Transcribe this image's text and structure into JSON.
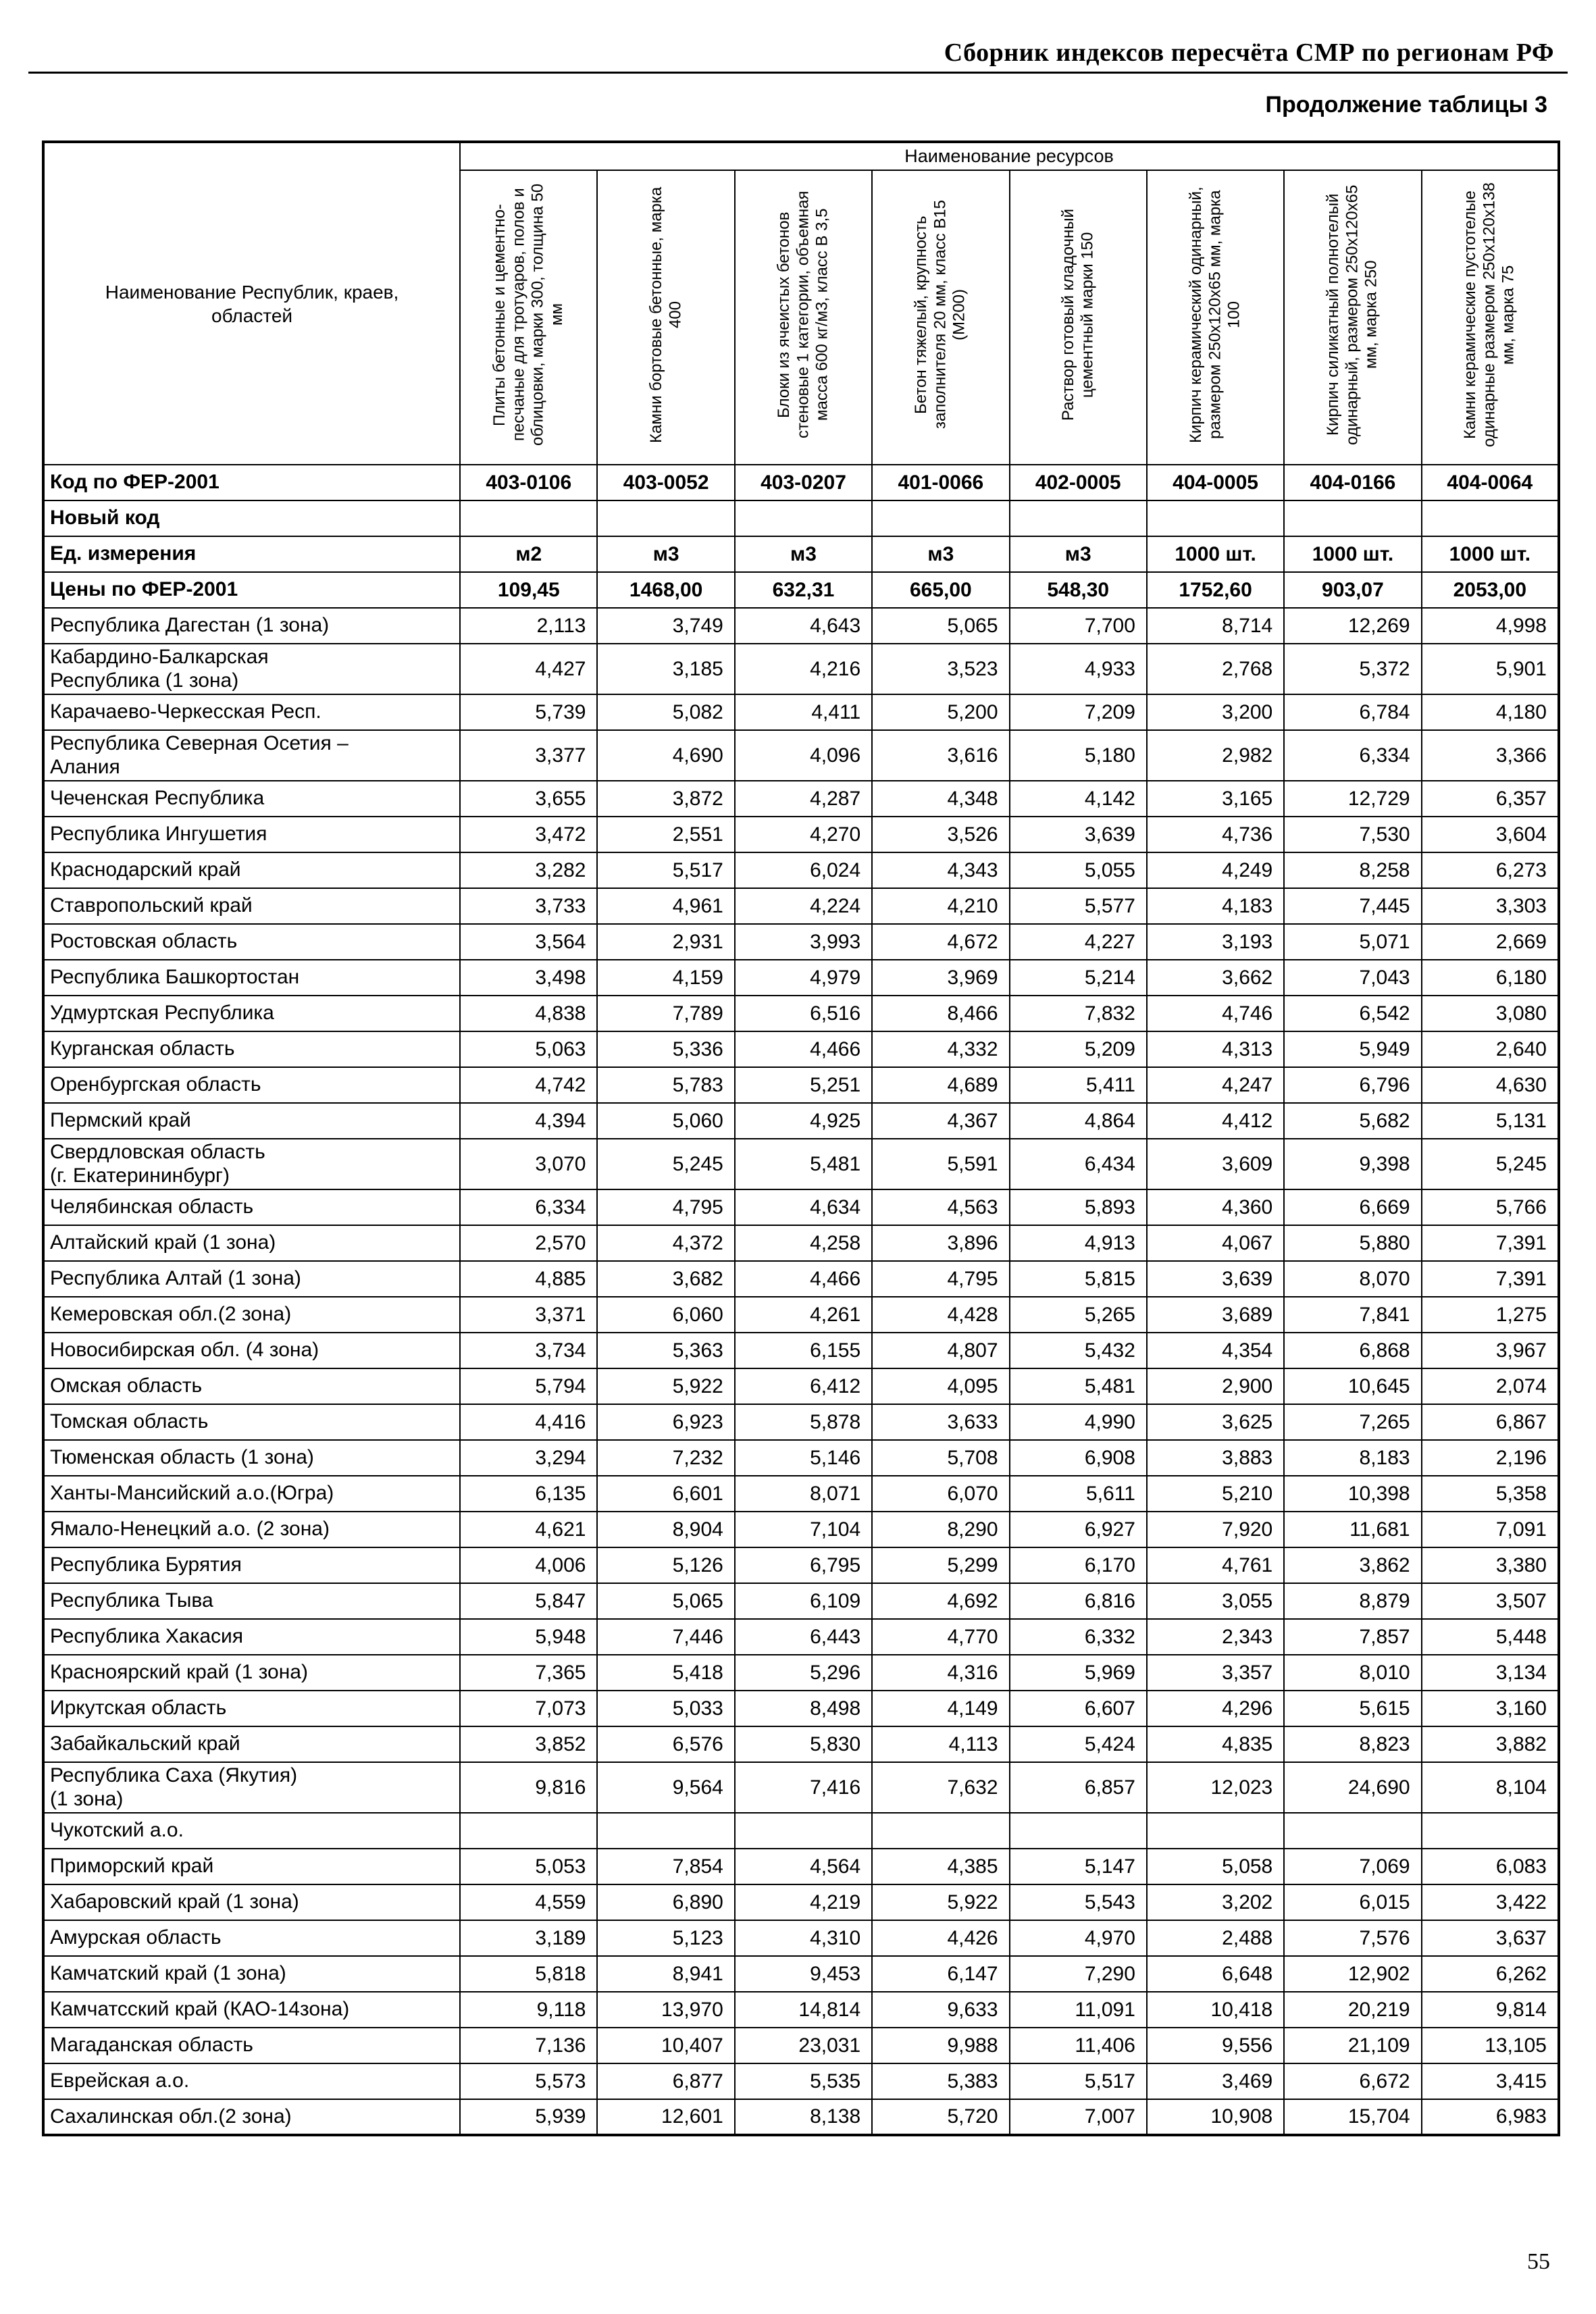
{
  "page": {
    "header": "Сборник индексов пересчёта СМР  по регионам РФ",
    "subtitle": "Продолжение таблицы 3",
    "page_number": "55"
  },
  "table": {
    "resources_header": "Наименование ресурсов",
    "first_col_header": "Наименование Республик, краев,\nобластей",
    "col_headers": [
      "Плиты  бетонные и цементно-песчаные  для тротуаров, полов и облицовки, марки 300, толщина 50 мм",
      "Камни бортовые бетонные, марка 400",
      "Блоки из ячеистых бетонов стеновые 1 категории, объемная масса 600 кг/м3, класс В 3,5",
      "Бетон тяжелый, крупность заполнителя 20 мм, класс В15 (М200)",
      "Раствор готовый кладочный цементный марки 150",
      "Кирпич керамический одинарный, размером 250х120х65 мм, марка 100",
      "Кирпич силикатный полнотелый одинарный, размером 250х120х65 мм, марка 250",
      "Камни керамические пустотелые одинарные размером 250х120х138 мм, марка 75"
    ],
    "meta_rows": [
      {
        "label": "Код по ФЕР-2001",
        "values": [
          "403-0106",
          "403-0052",
          "403-0207",
          "401-0066",
          "402-0005",
          "404-0005",
          "404-0166",
          "404-0064"
        ]
      },
      {
        "label": "Новый код",
        "values": [
          "",
          "",
          "",
          "",
          "",
          "",
          "",
          ""
        ]
      },
      {
        "label": "Ед. измерения",
        "values": [
          "м2",
          "м3",
          "м3",
          "м3",
          "м3",
          "1000 шт.",
          "1000 шт.",
          "1000 шт."
        ]
      },
      {
        "label": "Цены по ФЕР-2001",
        "values": [
          "109,45",
          "1468,00",
          "632,31",
          "665,00",
          "548,30",
          "1752,60",
          "903,07",
          "2053,00"
        ]
      }
    ],
    "rows": [
      {
        "name": "Республика Дагестан (1 зона)",
        "values": [
          "2,113",
          "3,749",
          "4,643",
          "5,065",
          "7,700",
          "8,714",
          "12,269",
          "4,998"
        ]
      },
      {
        "name": "Кабардино-Балкарская\nРеспублика (1 зона)",
        "values": [
          "4,427",
          "3,185",
          "4,216",
          "3,523",
          "4,933",
          "2,768",
          "5,372",
          "5,901"
        ]
      },
      {
        "name": "Карачаево-Черкесская Респ.",
        "values": [
          "5,739",
          "5,082",
          "4,411",
          "5,200",
          "7,209",
          "3,200",
          "6,784",
          "4,180"
        ]
      },
      {
        "name": "Республика Северная Осетия –\nАлания",
        "values": [
          "3,377",
          "4,690",
          "4,096",
          "3,616",
          "5,180",
          "2,982",
          "6,334",
          "3,366"
        ]
      },
      {
        "name": "Чеченская Республика",
        "values": [
          "3,655",
          "3,872",
          "4,287",
          "4,348",
          "4,142",
          "3,165",
          "12,729",
          "6,357"
        ]
      },
      {
        "name": "Республика Ингушетия",
        "values": [
          "3,472",
          "2,551",
          "4,270",
          "3,526",
          "3,639",
          "4,736",
          "7,530",
          "3,604"
        ]
      },
      {
        "name": "Краснодарский край",
        "values": [
          "3,282",
          "5,517",
          "6,024",
          "4,343",
          "5,055",
          "4,249",
          "8,258",
          "6,273"
        ]
      },
      {
        "name": "Ставропольский край",
        "values": [
          "3,733",
          "4,961",
          "4,224",
          "4,210",
          "5,577",
          "4,183",
          "7,445",
          "3,303"
        ]
      },
      {
        "name": "Ростовская область",
        "values": [
          "3,564",
          "2,931",
          "3,993",
          "4,672",
          "4,227",
          "3,193",
          "5,071",
          "2,669"
        ]
      },
      {
        "name": "Республика Башкортостан",
        "values": [
          "3,498",
          "4,159",
          "4,979",
          "3,969",
          "5,214",
          "3,662",
          "7,043",
          "6,180"
        ]
      },
      {
        "name": "Удмуртская Республика",
        "values": [
          "4,838",
          "7,789",
          "6,516",
          "8,466",
          "7,832",
          "4,746",
          "6,542",
          "3,080"
        ]
      },
      {
        "name": "Курганская область",
        "values": [
          "5,063",
          "5,336",
          "4,466",
          "4,332",
          "5,209",
          "4,313",
          "5,949",
          "2,640"
        ]
      },
      {
        "name": "Оренбургская область",
        "values": [
          "4,742",
          "5,783",
          "5,251",
          "4,689",
          "5,411",
          "4,247",
          "6,796",
          "4,630"
        ]
      },
      {
        "name": "Пермский край",
        "values": [
          "4,394",
          "5,060",
          "4,925",
          "4,367",
          "4,864",
          "4,412",
          "5,682",
          "5,131"
        ]
      },
      {
        "name": "Свердловская область\n(г. Екатерининбург)",
        "values": [
          "3,070",
          "5,245",
          "5,481",
          "5,591",
          "6,434",
          "3,609",
          "9,398",
          "5,245"
        ]
      },
      {
        "name": "Челябинская область",
        "values": [
          "6,334",
          "4,795",
          "4,634",
          "4,563",
          "5,893",
          "4,360",
          "6,669",
          "5,766"
        ]
      },
      {
        "name": "Алтайский край (1 зона)",
        "values": [
          "2,570",
          "4,372",
          "4,258",
          "3,896",
          "4,913",
          "4,067",
          "5,880",
          "7,391"
        ]
      },
      {
        "name": "Республика Алтай (1 зона)",
        "values": [
          "4,885",
          "3,682",
          "4,466",
          "4,795",
          "5,815",
          "3,639",
          "8,070",
          "7,391"
        ]
      },
      {
        "name": "Кемеровская обл.(2 зона)",
        "values": [
          "3,371",
          "6,060",
          "4,261",
          "4,428",
          "5,265",
          "3,689",
          "7,841",
          "1,275"
        ]
      },
      {
        "name": "Новосибирская обл. (4 зона)",
        "values": [
          "3,734",
          "5,363",
          "6,155",
          "4,807",
          "5,432",
          "4,354",
          "6,868",
          "3,967"
        ]
      },
      {
        "name": "Омская область",
        "values": [
          "5,794",
          "5,922",
          "6,412",
          "4,095",
          "5,481",
          "2,900",
          "10,645",
          "2,074"
        ]
      },
      {
        "name": "Томская область",
        "values": [
          "4,416",
          "6,923",
          "5,878",
          "3,633",
          "4,990",
          "3,625",
          "7,265",
          "6,867"
        ]
      },
      {
        "name": "Тюменская область (1 зона)",
        "values": [
          "3,294",
          "7,232",
          "5,146",
          "5,708",
          "6,908",
          "3,883",
          "8,183",
          "2,196"
        ]
      },
      {
        "name": "Ханты-Мансийский а.о.(Югра)",
        "values": [
          "6,135",
          "6,601",
          "8,071",
          "6,070",
          "5,611",
          "5,210",
          "10,398",
          "5,358"
        ]
      },
      {
        "name": "Ямало-Ненецкий а.о. (2 зона)",
        "values": [
          "4,621",
          "8,904",
          "7,104",
          "8,290",
          "6,927",
          "7,920",
          "11,681",
          "7,091"
        ]
      },
      {
        "name": "Республика Бурятия",
        "values": [
          "4,006",
          "5,126",
          "6,795",
          "5,299",
          "6,170",
          "4,761",
          "3,862",
          "3,380"
        ]
      },
      {
        "name": "Республика Тыва",
        "values": [
          "5,847",
          "5,065",
          "6,109",
          "4,692",
          "6,816",
          "3,055",
          "8,879",
          "3,507"
        ]
      },
      {
        "name": "Республика Хакасия",
        "values": [
          "5,948",
          "7,446",
          "6,443",
          "4,770",
          "6,332",
          "2,343",
          "7,857",
          "5,448"
        ]
      },
      {
        "name": "Красноярский край (1 зона)",
        "values": [
          "7,365",
          "5,418",
          "5,296",
          "4,316",
          "5,969",
          "3,357",
          "8,010",
          "3,134"
        ]
      },
      {
        "name": "Иркутская область",
        "values": [
          "7,073",
          "5,033",
          "8,498",
          "4,149",
          "6,607",
          "4,296",
          "5,615",
          "3,160"
        ]
      },
      {
        "name": "Забайкальский край",
        "values": [
          "3,852",
          "6,576",
          "5,830",
          "4,113",
          "5,424",
          "4,835",
          "8,823",
          "3,882"
        ]
      },
      {
        "name": "Республика Саха (Якутия)\n(1 зона)",
        "values": [
          "9,816",
          "9,564",
          "7,416",
          "7,632",
          "6,857",
          "12,023",
          "24,690",
          "8,104"
        ]
      },
      {
        "name": "Чукотский а.о.",
        "values": [
          "",
          "",
          "",
          "",
          "",
          "",
          "",
          ""
        ]
      },
      {
        "name": "Приморский край",
        "values": [
          "5,053",
          "7,854",
          "4,564",
          "4,385",
          "5,147",
          "5,058",
          "7,069",
          "6,083"
        ]
      },
      {
        "name": "Хабаровский край (1 зона)",
        "values": [
          "4,559",
          "6,890",
          "4,219",
          "5,922",
          "5,543",
          "3,202",
          "6,015",
          "3,422"
        ]
      },
      {
        "name": "Амурская область",
        "values": [
          "3,189",
          "5,123",
          "4,310",
          "4,426",
          "4,970",
          "2,488",
          "7,576",
          "3,637"
        ]
      },
      {
        "name": "Камчатский край (1 зона)",
        "values": [
          "5,818",
          "8,941",
          "9,453",
          "6,147",
          "7,290",
          "6,648",
          "12,902",
          "6,262"
        ]
      },
      {
        "name": "Камчатсский край (КАО-14зона)",
        "values": [
          "9,118",
          "13,970",
          "14,814",
          "9,633",
          "11,091",
          "10,418",
          "20,219",
          "9,814"
        ]
      },
      {
        "name": "Магаданская область",
        "values": [
          "7,136",
          "10,407",
          "23,031",
          "9,988",
          "11,406",
          "9,556",
          "21,109",
          "13,105"
        ]
      },
      {
        "name": "Еврейская а.о.",
        "values": [
          "5,573",
          "6,877",
          "5,535",
          "5,383",
          "5,517",
          "3,469",
          "6,672",
          "3,415"
        ]
      },
      {
        "name": "Сахалинская обл.(2 зона)",
        "values": [
          "5,939",
          "12,601",
          "8,138",
          "5,720",
          "7,007",
          "10,908",
          "15,704",
          "6,983"
        ]
      }
    ]
  }
}
